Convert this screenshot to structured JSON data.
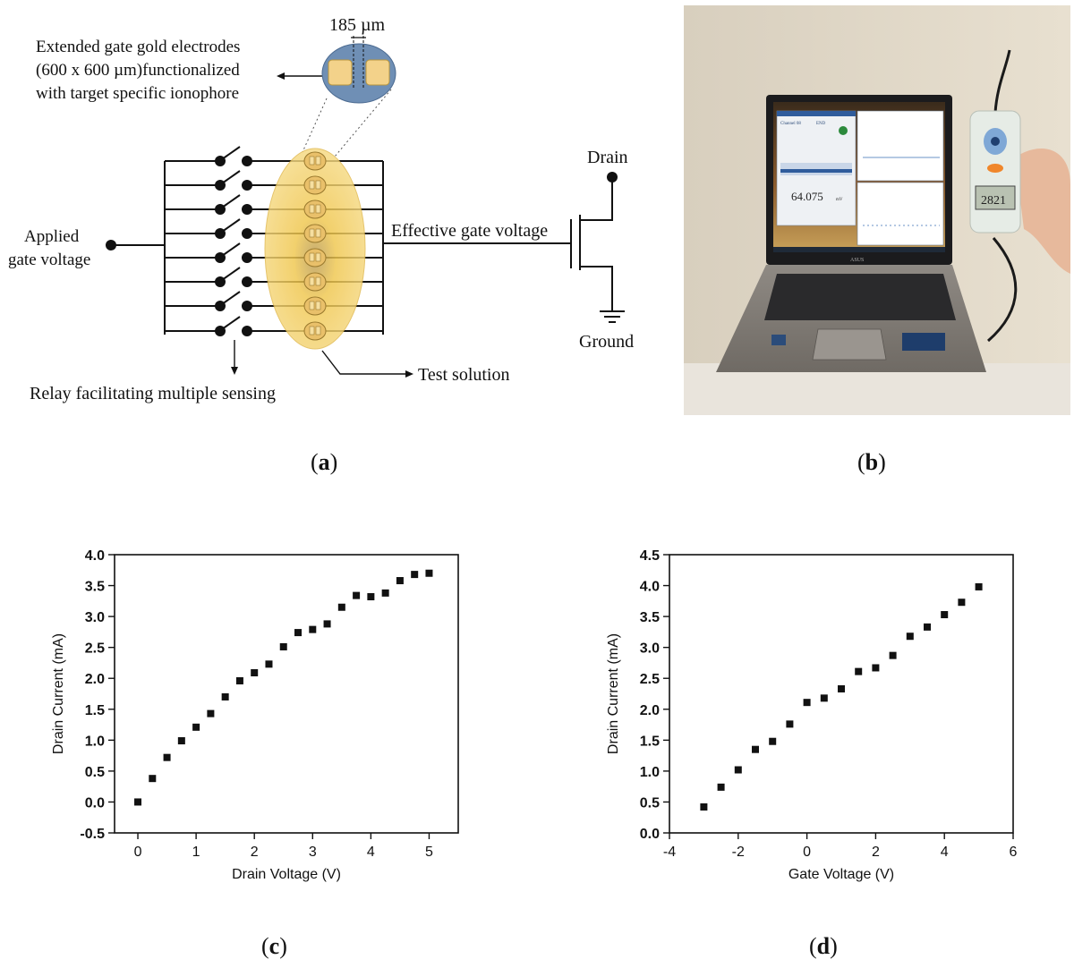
{
  "panel_a": {
    "spacing_label": "185 µm",
    "electrode_caption": [
      "Extended gate gold electrodes",
      "(600 x 600 µm)functionalized",
      "with target specific ionophore"
    ],
    "applied_gate": [
      "Applied",
      "gate voltage"
    ],
    "effective_gate": "Effective gate voltage",
    "drain": "Drain",
    "ground": "Ground",
    "relay": "Relay facilitating multiple sensing",
    "test_solution": "Test solution",
    "colors": {
      "solution": "#f2c240",
      "electrode_disc": "#6f8fb5",
      "pad": "#f3d28a"
    }
  },
  "panel_b": {
    "app_channel": "Channel 08",
    "app_end": "END",
    "app_reading": "64.075",
    "app_unit": "mV",
    "device_readout": "2821",
    "laptop_brand": "ASUS"
  },
  "labels": {
    "a": {
      "open": "(",
      "letter": "a",
      "close": ")"
    },
    "b": {
      "open": "(",
      "letter": "b",
      "close": ")"
    },
    "c": {
      "open": "(",
      "letter": "c",
      "close": ")"
    },
    "d": {
      "open": "(",
      "letter": "d",
      "close": ")"
    }
  },
  "chart_data": [
    {
      "type": "scatter",
      "id": "c",
      "xlabel": "Drain Voltage (V)",
      "ylabel": "Drain Current (mA)",
      "xlim": [
        -0.4,
        5.5
      ],
      "ylim": [
        -0.5,
        4.0
      ],
      "xticks": [
        "0",
        "1",
        "2",
        "3",
        "4",
        "5"
      ],
      "xtick_values": [
        0,
        1,
        2,
        3,
        4,
        5
      ],
      "yticks": [
        "-0.5",
        "0.0",
        "0.5",
        "1.0",
        "1.5",
        "2.0",
        "2.5",
        "3.0",
        "3.5",
        "4.0"
      ],
      "ytick_values": [
        -0.5,
        0,
        0.5,
        1,
        1.5,
        2,
        2.5,
        3,
        3.5,
        4
      ],
      "x": [
        0,
        0.25,
        0.5,
        0.75,
        1.0,
        1.25,
        1.5,
        1.75,
        2.0,
        2.25,
        2.5,
        2.75,
        3.0,
        3.25,
        3.5,
        3.75,
        4.0,
        4.25,
        4.5,
        4.75,
        5.0
      ],
      "y": [
        0.0,
        0.38,
        0.72,
        0.99,
        1.21,
        1.43,
        1.7,
        1.96,
        2.09,
        2.23,
        2.51,
        2.74,
        2.79,
        2.88,
        3.15,
        3.34,
        3.32,
        3.38,
        3.58,
        3.68,
        3.7
      ]
    },
    {
      "type": "scatter",
      "id": "d",
      "xlabel": "Gate Voltage (V)",
      "ylabel": "Drain Current (mA)",
      "xlim": [
        -4,
        6
      ],
      "ylim": [
        0.0,
        4.5
      ],
      "xticks": [
        "-4",
        "-2",
        "0",
        "2",
        "4",
        "6"
      ],
      "xtick_values": [
        -4,
        -2,
        0,
        2,
        4,
        6
      ],
      "yticks": [
        "0.0",
        "0.5",
        "1.0",
        "1.5",
        "2.0",
        "2.5",
        "3.0",
        "3.5",
        "4.0",
        "4.5"
      ],
      "ytick_values": [
        0,
        0.5,
        1,
        1.5,
        2,
        2.5,
        3,
        3.5,
        4,
        4.5
      ],
      "x": [
        -3.0,
        -2.5,
        -2.0,
        -1.5,
        -1.0,
        -0.5,
        0.0,
        0.5,
        1.0,
        1.5,
        2.0,
        2.5,
        3.0,
        3.5,
        4.0,
        4.5,
        5.0
      ],
      "y": [
        0.42,
        0.74,
        1.02,
        1.35,
        1.48,
        1.76,
        2.11,
        2.18,
        2.33,
        2.61,
        2.67,
        2.87,
        3.18,
        3.33,
        3.53,
        3.73,
        3.98
      ]
    }
  ]
}
